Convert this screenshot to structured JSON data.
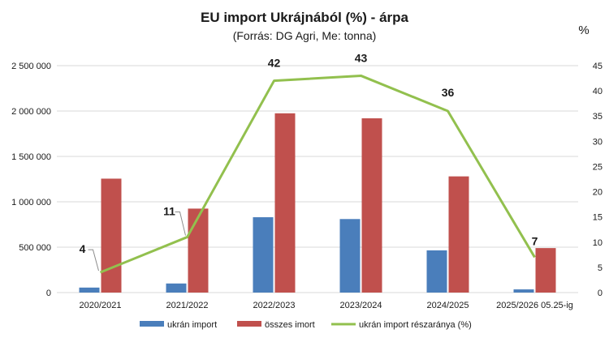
{
  "chart_data": {
    "type": "bar",
    "title": "EU import Ukrájnából (%) - árpa",
    "subtitle": "(Forrás: DG Agri, Me: tonna)",
    "y2_unit": "%",
    "categories": [
      "2020/2021",
      "2021/2022",
      "2022/2023",
      "2023/2024",
      "2024/2025",
      "2025/2026 05.25-ig"
    ],
    "series": [
      {
        "name": "ukrán import",
        "type": "bar",
        "axis": "left",
        "color": "#4a7ebb",
        "values": [
          55000,
          100000,
          830000,
          810000,
          465000,
          35000
        ]
      },
      {
        "name": "összes imort",
        "type": "bar",
        "axis": "left",
        "color": "#c0504d",
        "values": [
          1255000,
          925000,
          1975000,
          1920000,
          1280000,
          490000
        ]
      },
      {
        "name": "ukrán import részaránya (%)",
        "type": "line",
        "axis": "right",
        "color": "#92c04e",
        "values": [
          4,
          11,
          42,
          43,
          36,
          7
        ]
      }
    ],
    "line_labels": [
      "4",
      "11",
      "42",
      "43",
      "36",
      "7"
    ],
    "ylim": [
      0,
      2500000
    ],
    "y_ticks": [
      "0",
      "500 000",
      "1 000 000",
      "1 500 000",
      "2 000 000",
      "2 500 000"
    ],
    "y2lim": [
      0,
      45
    ],
    "y2_ticks": [
      "0",
      "5",
      "10",
      "15",
      "20",
      "25",
      "30",
      "35",
      "40",
      "45"
    ],
    "grid": true,
    "legend_position": "bottom"
  }
}
